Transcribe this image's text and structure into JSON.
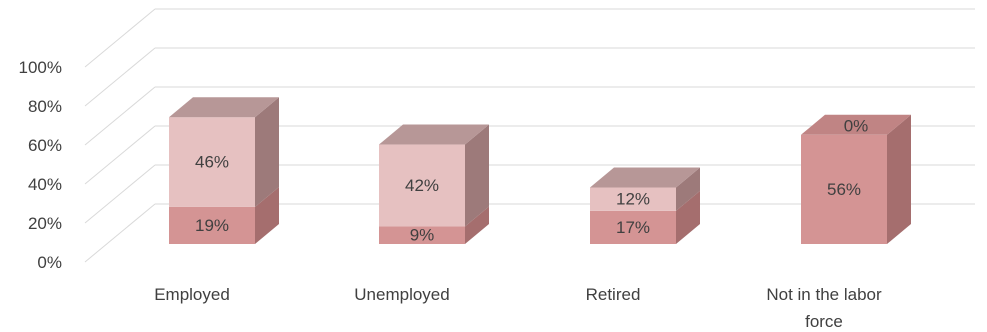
{
  "chart_data": {
    "type": "bar",
    "stacked": true,
    "three_d": true,
    "categories": [
      "Employed",
      "Unemployed",
      "Retired",
      "Not in the labor force"
    ],
    "series": [
      {
        "values": [
          19,
          9,
          17,
          56
        ],
        "labels": [
          "19%",
          "9%",
          "17%",
          "56%"
        ]
      },
      {
        "values": [
          46,
          42,
          12,
          0
        ],
        "labels": [
          "46%",
          "42%",
          "12%",
          "0%"
        ]
      }
    ],
    "y_ticks": [
      "0%",
      "20%",
      "40%",
      "60%",
      "80%",
      "100%"
    ],
    "ylim": [
      0,
      100
    ],
    "grid": true,
    "colors": {
      "series_bottom": {
        "front": "#d49494",
        "side": "#a56e6e",
        "top": "#c08484"
      },
      "series_top": {
        "front": "#e6c1c1",
        "side": "#9d7a7a",
        "top": "#b79797"
      },
      "gridline": "#d9d9d9",
      "text": "#404040"
    }
  }
}
